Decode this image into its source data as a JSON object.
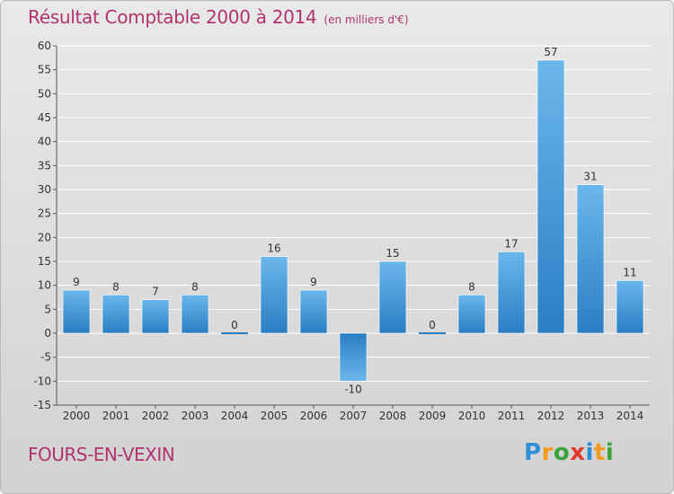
{
  "header": {
    "title": "Résultat Comptable 2000 à 2014",
    "unit": "(en milliers d'€)"
  },
  "footer": {
    "place": "FOURS-EN-VEXIN",
    "brand": [
      "P",
      "r",
      "o",
      "x",
      "i",
      "t",
      "i"
    ],
    "brand_colors": [
      "#2e8fd6",
      "#f29b1d",
      "#3aa43a",
      "#e23a2c",
      "#2e8fd6",
      "#f29b1d",
      "#3aa43a"
    ]
  },
  "colors": {
    "title": "#b0336e",
    "bar_light": "#6bb7ec",
    "bar_dark": "#2a7ec3",
    "grid": "#ffffff",
    "axis_text": "#333333"
  },
  "chart_data": {
    "type": "bar",
    "categories": [
      "2000",
      "2001",
      "2002",
      "2003",
      "2004",
      "2005",
      "2006",
      "2007",
      "2008",
      "2009",
      "2010",
      "2011",
      "2012",
      "2013",
      "2014"
    ],
    "values": [
      9,
      8,
      7,
      8,
      0,
      16,
      9,
      -10,
      15,
      0,
      8,
      17,
      57,
      31,
      11
    ],
    "data_labels": [
      "9",
      "8",
      "7",
      "8",
      "0",
      "16",
      "9",
      "-10",
      "15",
      "0",
      "8",
      "17",
      "57",
      "31",
      "11"
    ],
    "title": "Résultat Comptable 2000 à 2014",
    "xlabel": "",
    "ylabel": "",
    "ylim": [
      -15,
      60
    ],
    "ytick_step": 5,
    "yticks": [
      "60",
      "55",
      "50",
      "45",
      "40",
      "35",
      "30",
      "25",
      "20",
      "15",
      "10",
      "5",
      "0",
      "-5",
      "-10",
      "-15"
    ],
    "grid": true,
    "legend": "none"
  }
}
